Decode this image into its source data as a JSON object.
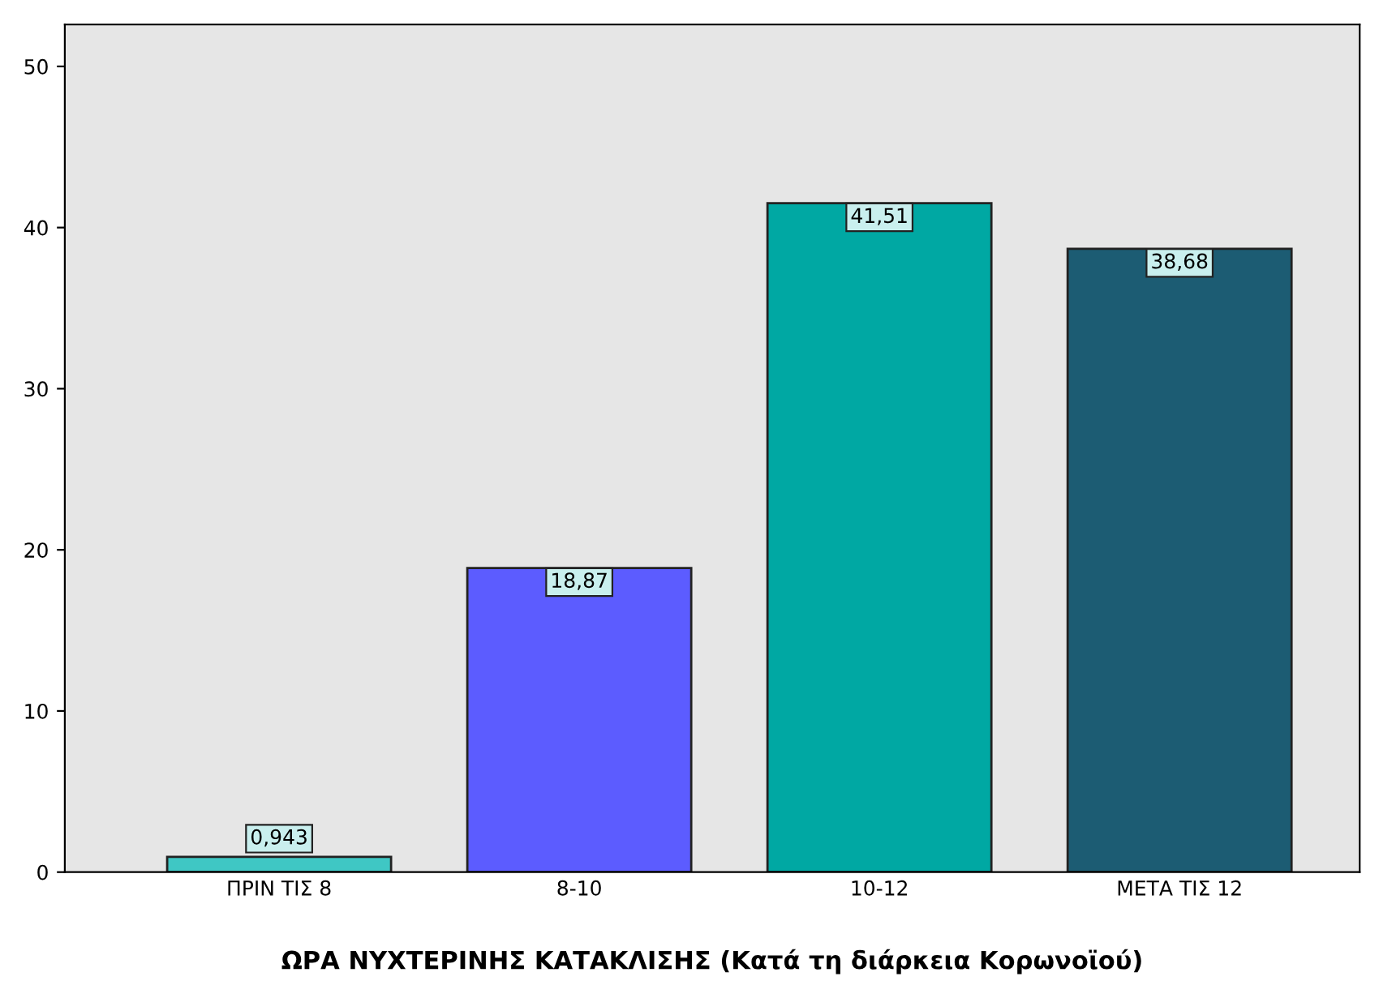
{
  "chart_data": {
    "type": "bar",
    "xlabel": "ΩΡΑ ΝΥΧΤΕΡΙΝΗΣ ΚΑΤΑΚΛΙΣΗΣ (Κατά τη διάρκεια Κορωνοϊού)",
    "categories": [
      "ΠΡΙΝ ΤΙΣ 8",
      "8-10",
      "10-12",
      "ΜΕΤΑ ΤΙΣ 12"
    ],
    "values": [
      0.943,
      18.87,
      41.51,
      38.68
    ],
    "value_labels": [
      "0,943",
      "18,87",
      "41,51",
      "38,68"
    ],
    "colors": [
      "#3fc7c4",
      "#5c5cff",
      "#00a8a3",
      "#1c5c73"
    ],
    "ylim": [
      0,
      52.6
    ],
    "yticks": [
      0,
      10,
      20,
      30,
      40,
      50
    ],
    "grid": false,
    "legend": false
  }
}
